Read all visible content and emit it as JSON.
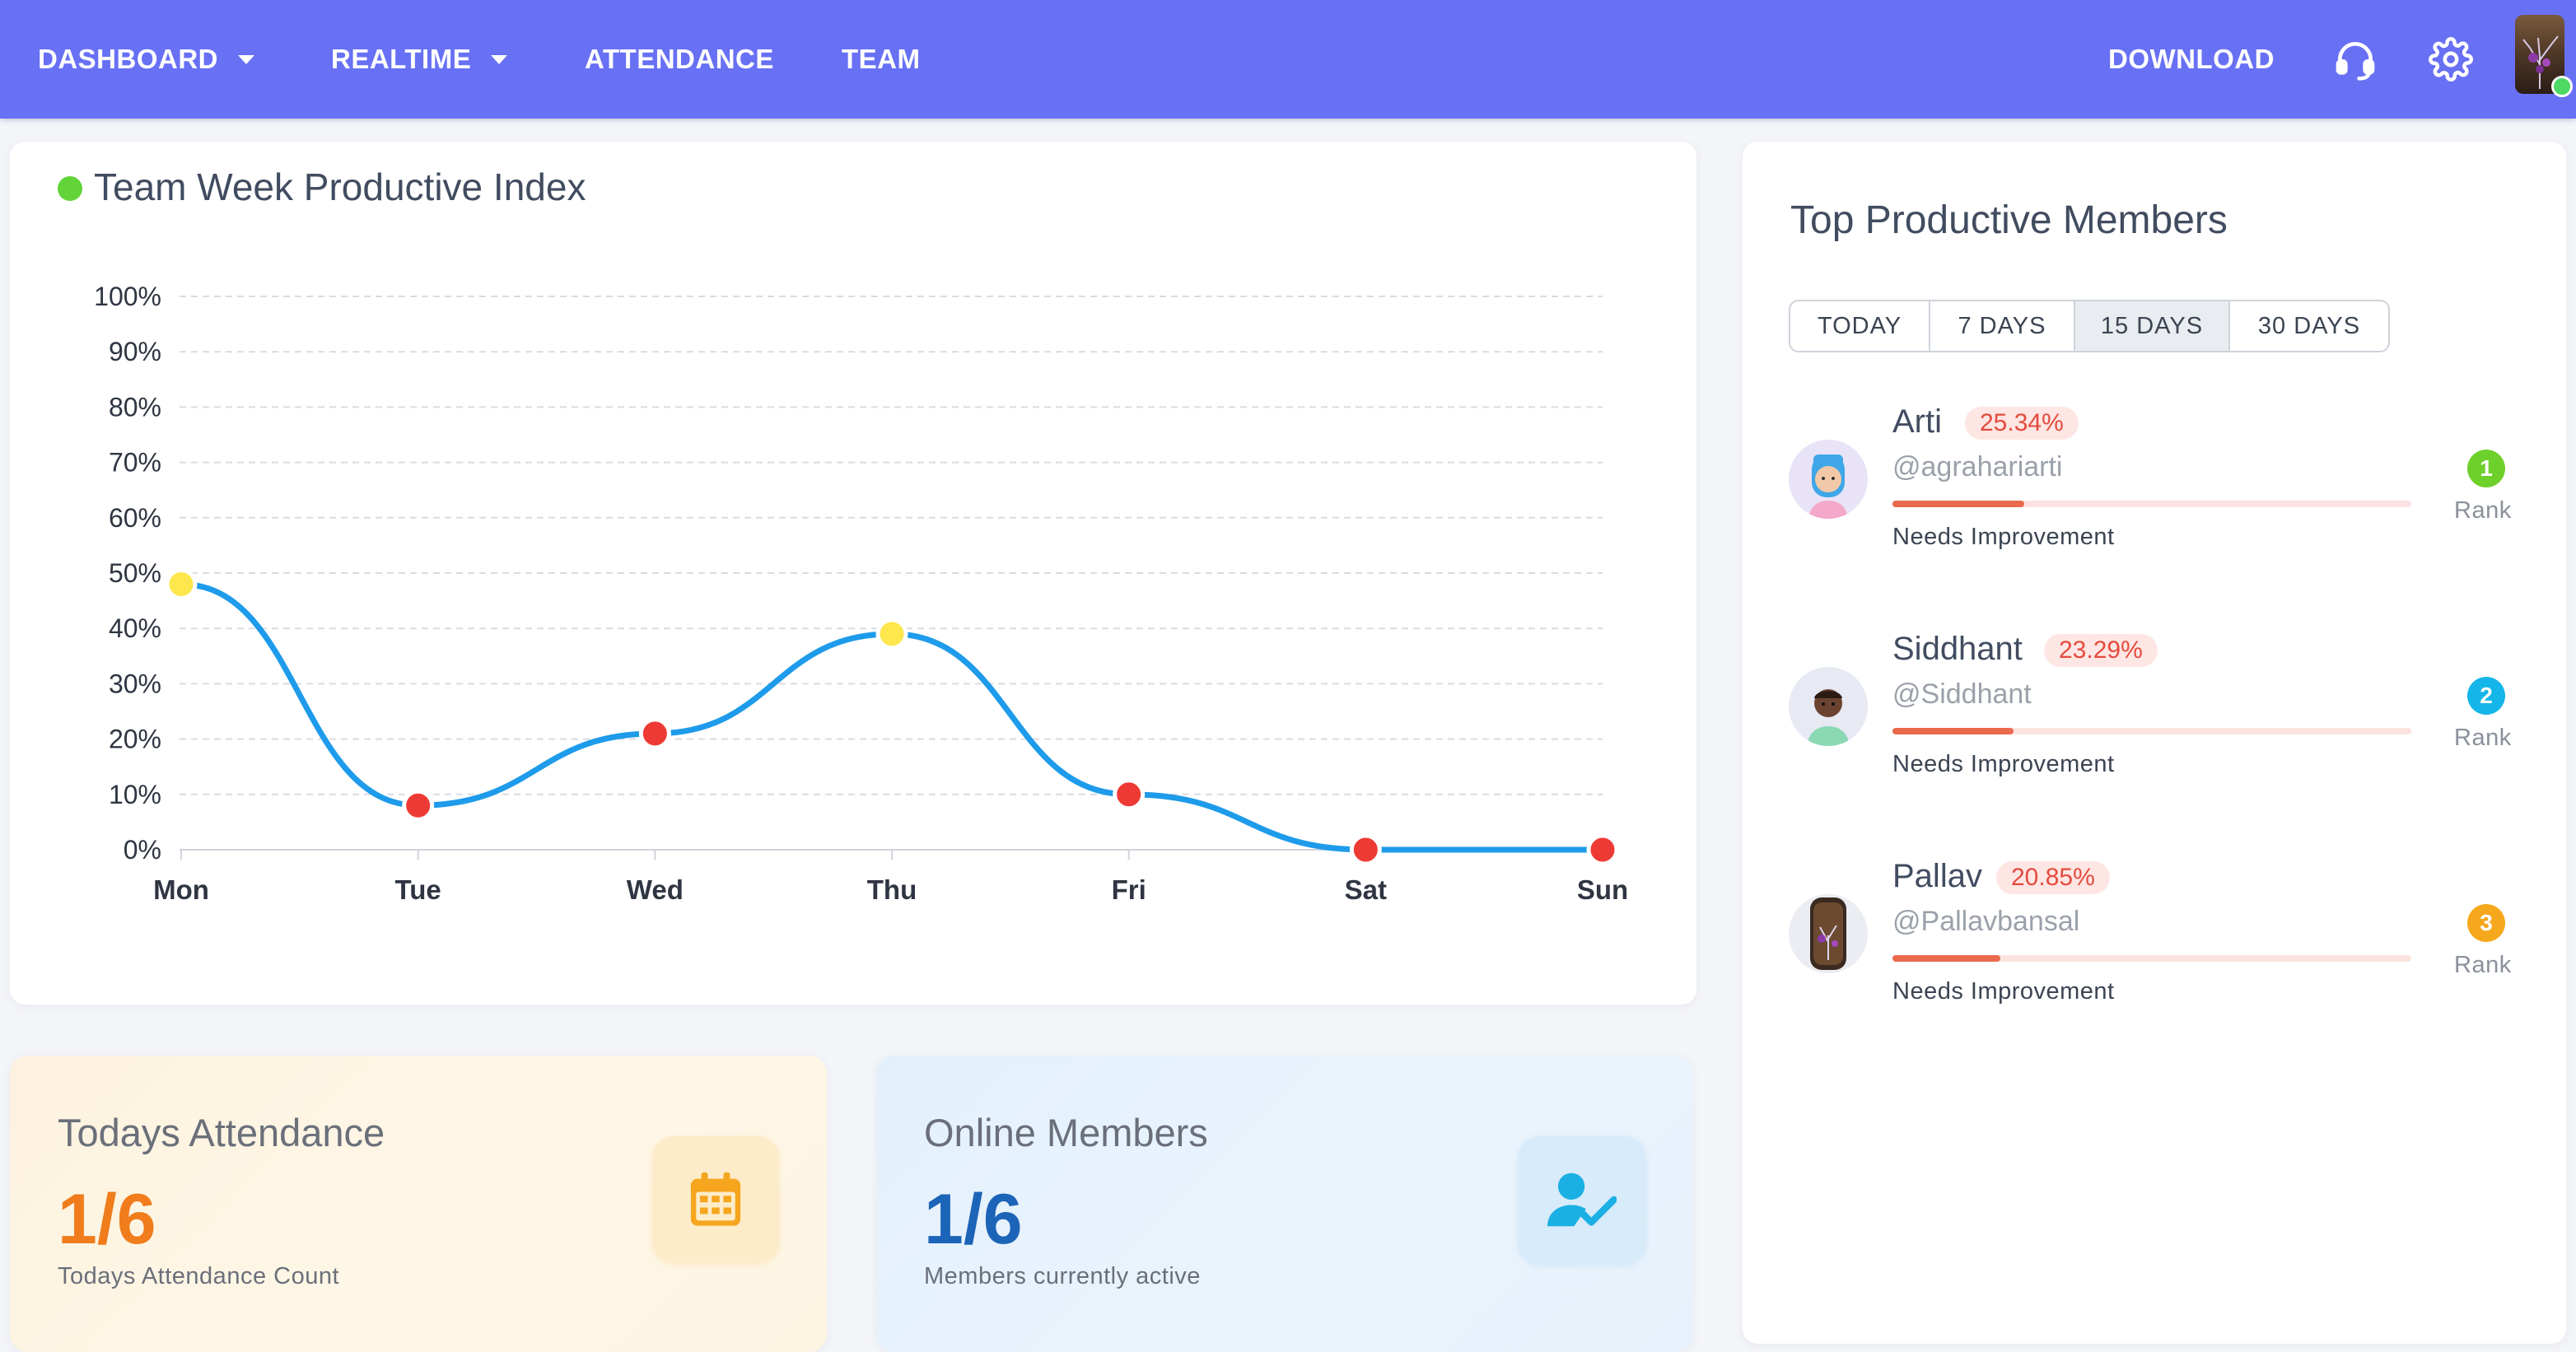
{
  "nav": {
    "items": [
      {
        "label": "DASHBOARD",
        "dropdown": true
      },
      {
        "label": "REALTIME",
        "dropdown": true
      },
      {
        "label": "ATTENDANCE",
        "dropdown": false
      },
      {
        "label": "TEAM",
        "dropdown": false
      }
    ],
    "download_label": "DOWNLOAD",
    "icons": [
      "headset-icon",
      "gear-icon",
      "user-avatar"
    ],
    "online_status_color": "#4cd964"
  },
  "productivity": {
    "title": "Team Week Productive Index",
    "indicator_color": "#62d338"
  },
  "chart_data": {
    "type": "line",
    "title": "Team Week Productive Index",
    "categories": [
      "Mon",
      "Tue",
      "Wed",
      "Thu",
      "Fri",
      "Sat",
      "Sun"
    ],
    "series": [
      {
        "values": [
          48,
          8,
          21,
          39,
          10,
          0,
          0
        ],
        "color": "#1e9bea",
        "marker_colors": [
          "#fde74c",
          "#ee3a35",
          "#ee3a35",
          "#fde74c",
          "#ee3a35",
          "#ee3a35",
          "#ee3a35"
        ]
      }
    ],
    "ylim": [
      0,
      100
    ],
    "yticks": [
      "0%",
      "10%",
      "20%",
      "30%",
      "40%",
      "50%",
      "60%",
      "70%",
      "80%",
      "90%",
      "100%"
    ],
    "grid": true,
    "xlabel": "",
    "ylabel": ""
  },
  "attendance": {
    "title": "Todays Attendance",
    "value": "1/6",
    "subtitle": "Todays Attendance Count",
    "value_color": "#f07c1b",
    "icon": "calendar-icon"
  },
  "online": {
    "title": "Online Members",
    "value": "1/6",
    "subtitle": "Members currently active",
    "value_color": "#1c64b8",
    "icon": "user-check-icon"
  },
  "top_members": {
    "title": "Top Productive Members",
    "tabs": [
      {
        "label": "TODAY",
        "active": false
      },
      {
        "label": "7 DAYS",
        "active": false
      },
      {
        "label": "15 DAYS",
        "active": true
      },
      {
        "label": "30 DAYS",
        "active": false
      }
    ],
    "members": [
      {
        "name": "Arti",
        "percent": "25.34%",
        "percent_value": 25.34,
        "handle": "@agrahariarti",
        "status": "Needs Improvement",
        "rank": "1",
        "rank_label": "Rank",
        "rank_color": "#6ed12b"
      },
      {
        "name": "Siddhant",
        "percent": "23.29%",
        "percent_value": 23.29,
        "handle": "@Siddhant",
        "status": "Needs Improvement",
        "rank": "2",
        "rank_label": "Rank",
        "rank_color": "#14b5e8"
      },
      {
        "name": "Pallav",
        "percent": "20.85%",
        "percent_value": 20.85,
        "handle": "@Pallavbansal",
        "status": "Needs Improvement",
        "rank": "3",
        "rank_label": "Rank",
        "rank_color": "#f6a81c"
      }
    ]
  }
}
